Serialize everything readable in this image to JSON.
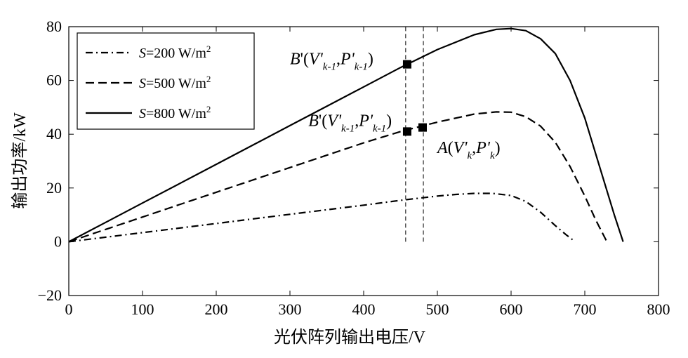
{
  "chart_data": {
    "type": "line",
    "xlabel": "光伏阵列输出电压/V",
    "ylabel": "输出功率/kW",
    "xlim": [
      0,
      800
    ],
    "ylim": [
      -20,
      80
    ],
    "xticks": [
      0,
      100,
      200,
      300,
      400,
      500,
      600,
      700,
      800
    ],
    "yticks": [
      -20,
      0,
      20,
      40,
      60,
      80
    ],
    "grid": false,
    "legend_position": "top-left",
    "series": [
      {
        "name": "S=200 W/m2",
        "legend": {
          "prefix": "S",
          "main": "=200 W/m",
          "sup": "2"
        },
        "style": "dash-dot",
        "x": [
          0,
          50,
          100,
          150,
          200,
          250,
          300,
          350,
          400,
          450,
          500,
          525,
          550,
          575,
          600,
          620,
          640,
          660,
          675,
          687
        ],
        "y": [
          0,
          1.7,
          3.4,
          5.1,
          6.8,
          8.5,
          10.2,
          11.9,
          13.6,
          15.4,
          17.0,
          17.6,
          18.0,
          18.0,
          17.2,
          15.0,
          11.0,
          6.0,
          2.5,
          0
        ]
      },
      {
        "name": "S=500 W/m2",
        "legend": {
          "prefix": "S",
          "main": "=500 W/m",
          "sup": "2"
        },
        "style": "dashed",
        "x": [
          0,
          50,
          100,
          150,
          200,
          250,
          300,
          350,
          400,
          450,
          500,
          550,
          580,
          600,
          620,
          640,
          660,
          680,
          700,
          715,
          730
        ],
        "y": [
          0,
          4.6,
          9.2,
          13.8,
          18.4,
          23.0,
          27.6,
          32.2,
          36.8,
          41.0,
          44.5,
          47.5,
          48.3,
          48.2,
          46.5,
          43.0,
          37.0,
          28.0,
          17.0,
          8.0,
          0
        ]
      },
      {
        "name": "S=800 W/m2",
        "legend": {
          "prefix": "S",
          "main": "=800 W/m",
          "sup": "2"
        },
        "style": "solid",
        "x": [
          0,
          50,
          100,
          150,
          200,
          250,
          300,
          350,
          400,
          450,
          500,
          550,
          580,
          600,
          620,
          640,
          660,
          680,
          700,
          720,
          740,
          752
        ],
        "y": [
          0,
          7.2,
          14.4,
          21.6,
          28.8,
          36.0,
          43.2,
          50.4,
          57.6,
          64.8,
          71.5,
          77.0,
          79.0,
          79.3,
          78.5,
          75.5,
          70.0,
          60.0,
          46.0,
          28.0,
          10.0,
          0
        ]
      }
    ],
    "markers": [
      {
        "x": 459,
        "y": 66
      },
      {
        "x": 459,
        "y": 41
      },
      {
        "x": 480,
        "y": 42.5
      }
    ],
    "vlines": [
      457,
      481
    ],
    "vline_range": [
      0,
      80
    ],
    "annotations": [
      {
        "id": "b-upper",
        "x": 300,
        "y": 66,
        "main1": "B",
        "main2": "'(",
        "v": "V'",
        "vsub": "k-1",
        "comma": ",",
        "p": "P'",
        "psub": "k-1",
        "close": ")"
      },
      {
        "id": "b-lower",
        "x": 325,
        "y": 43,
        "main1": "B",
        "main2": "'(",
        "v": "V'",
        "vsub": "k-1",
        "comma": ",",
        "p": "P'",
        "psub": "k-1",
        "close": ")"
      },
      {
        "id": "a-point",
        "x": 500,
        "y": 33,
        "main1": "A",
        "main2": "(",
        "v": "V'",
        "vsub": "k",
        "comma": ",",
        "p": "P'",
        "psub": "k",
        "close": ")"
      }
    ]
  }
}
